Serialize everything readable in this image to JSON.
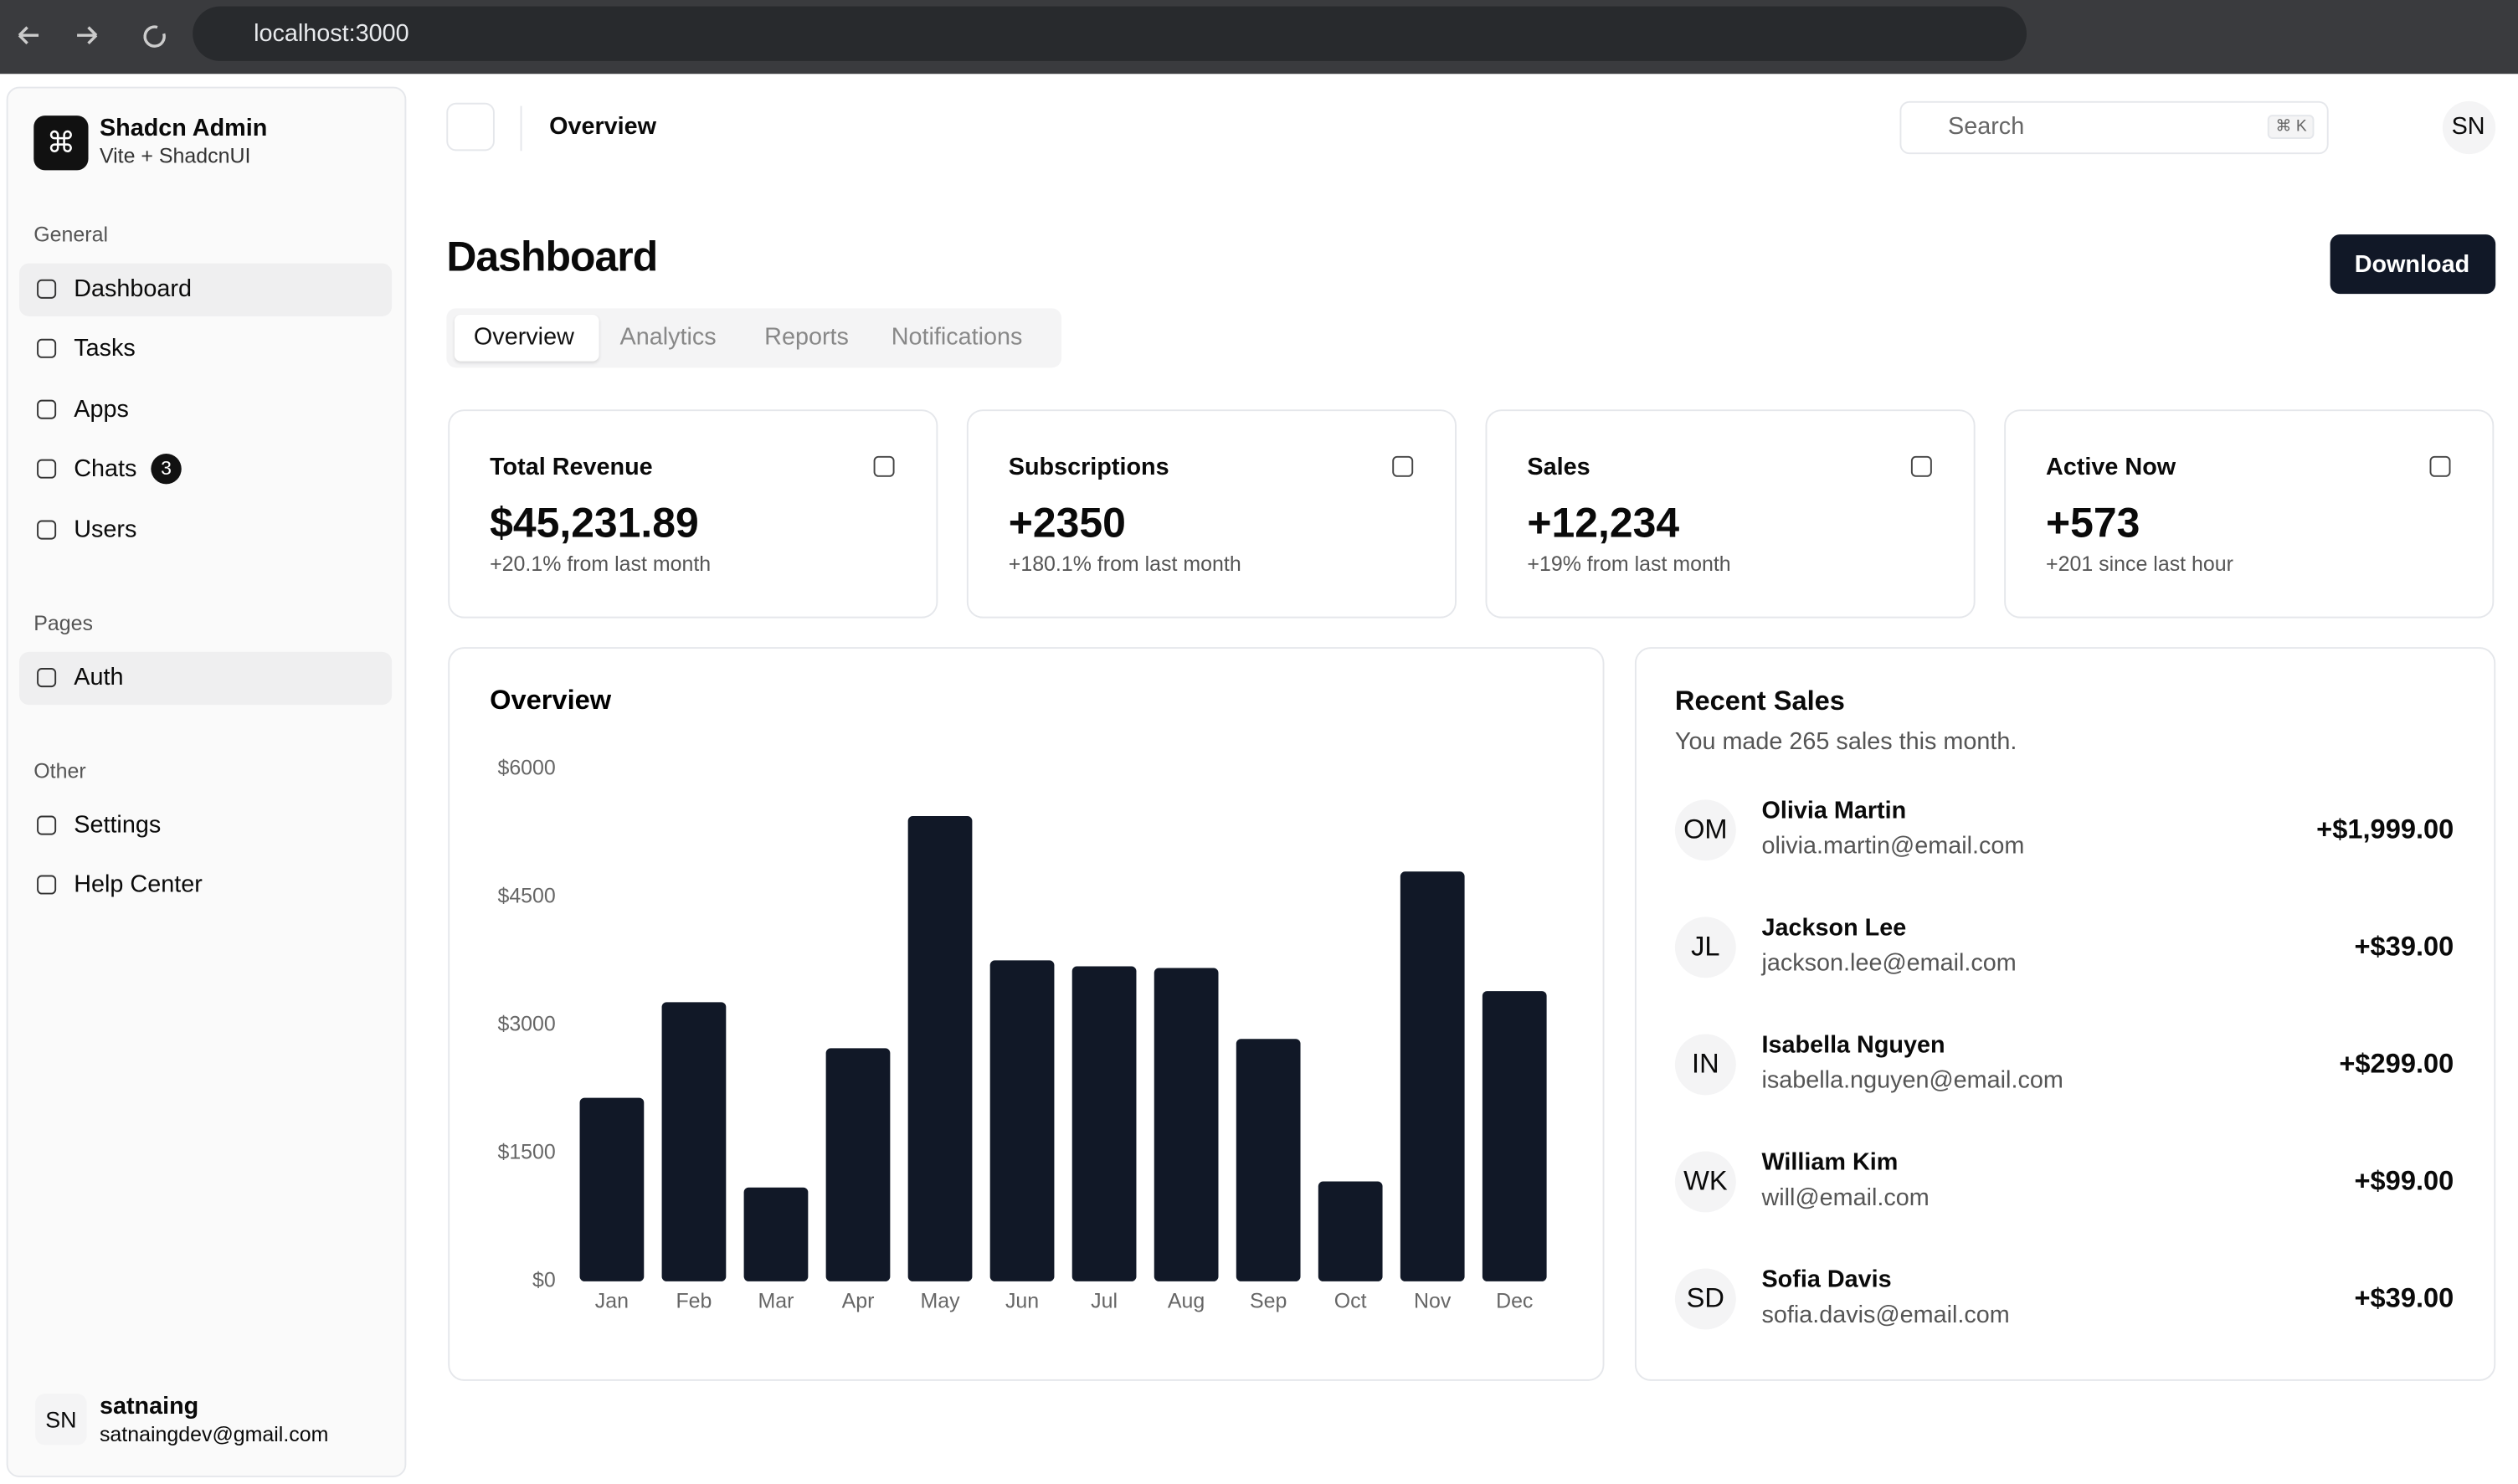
{
  "browser": {
    "url": "localhost:3000"
  },
  "sidebar": {
    "team": {
      "name": "Shadcn Admin",
      "subtitle": "Vite + ShadcnUI"
    },
    "groups": [
      {
        "title": "General",
        "items": [
          {
            "label": "Dashboard"
          },
          {
            "label": "Tasks"
          },
          {
            "label": "Apps"
          },
          {
            "label": "Chats",
            "badge": 3
          },
          {
            "label": "Users"
          }
        ]
      },
      {
        "title": "Pages",
        "items": [
          {
            "label": "Auth"
          }
        ]
      },
      {
        "title": "Other",
        "items": [
          {
            "label": "Settings"
          },
          {
            "label": "Help Center"
          }
        ]
      }
    ],
    "user": {
      "initials": "SN",
      "name": "satnaing",
      "email": "satnaingdev@gmail.com"
    }
  },
  "header": {
    "breadcrumb": "Overview",
    "search": "Search",
    "shortcut": "⌘ K",
    "avatar": "SN"
  },
  "page": {
    "title": "Dashboard",
    "download": "Download",
    "tabs": [
      "Overview",
      "Analytics",
      "Reports",
      "Notifications"
    ]
  },
  "cards": [
    {
      "title": "Total Revenue",
      "value": "$45,231.89",
      "note": "+20.1% from last month"
    },
    {
      "title": "Subscriptions",
      "value": "+2350",
      "note": "+180.1% from last month"
    },
    {
      "title": "Sales",
      "value": "+12,234",
      "note": "+19% from last month"
    },
    {
      "title": "Active Now",
      "value": "+573",
      "note": "+201 since last hour"
    }
  ],
  "chart_data": {
    "type": "bar",
    "title": "Overview",
    "categories": [
      "Jan",
      "Feb",
      "Mar",
      "Apr",
      "May",
      "Jun",
      "Jul",
      "Aug",
      "Sep",
      "Oct",
      "Nov",
      "Dec"
    ],
    "values": [
      2150,
      3270,
      1100,
      2730,
      5450,
      3760,
      3690,
      3670,
      2840,
      1170,
      4800,
      3400
    ],
    "color": "#111827",
    "ylim": [
      0,
      6000
    ],
    "yticks": [
      {
        "value": 0,
        "label": "$0"
      },
      {
        "value": 1500,
        "label": "$1500"
      },
      {
        "value": 3000,
        "label": "$3000"
      },
      {
        "value": 4500,
        "label": "$4500"
      },
      {
        "value": 6000,
        "label": "$6000"
      }
    ]
  },
  "recent_sales": {
    "title": "Recent Sales",
    "subtitle": "You made 265 sales this month.",
    "rows": [
      {
        "initials": "OM",
        "name": "Olivia Martin",
        "email": "olivia.martin@email.com",
        "amount": "+$1,999.00"
      },
      {
        "initials": "JL",
        "name": "Jackson Lee",
        "email": "jackson.lee@email.com",
        "amount": "+$39.00"
      },
      {
        "initials": "IN",
        "name": "Isabella Nguyen",
        "email": "isabella.nguyen@email.com",
        "amount": "+$299.00"
      },
      {
        "initials": "WK",
        "name": "William Kim",
        "email": "will@email.com",
        "amount": "+$99.00"
      },
      {
        "initials": "SD",
        "name": "Sofia Davis",
        "email": "sofia.davis@email.com",
        "amount": "+$39.00"
      }
    ]
  }
}
